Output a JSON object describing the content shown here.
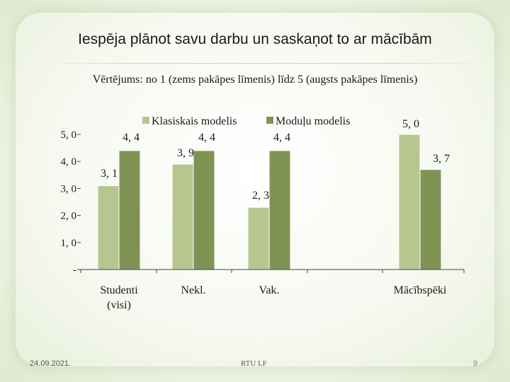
{
  "slide": {
    "title": "Iespēja plānot savu darbu un saskaņot to ar mācībām",
    "footer_date": "24.09.2021.",
    "footer_center": "RTU LF",
    "page_number": "9"
  },
  "colors": {
    "series_1": "#b7c68f",
    "series_2": "#7f9454",
    "axis": "#444444"
  },
  "chart_data": {
    "type": "bar",
    "title": "Vērtējums: no 1 (zems pakāpes līmenis) līdz 5 (augsts pakāpes līmenis)",
    "categories": [
      [
        "Studenti",
        "(visi)"
      ],
      [
        "Nekl."
      ],
      [
        "Vak."
      ],
      [
        "Mācībspēki"
      ]
    ],
    "series": [
      {
        "name": "Klasiskais modelis",
        "values": [
          3.1,
          3.9,
          2.3,
          5.0
        ]
      },
      {
        "name": "Moduļu modelis",
        "values": [
          4.4,
          4.4,
          4.4,
          3.7
        ]
      }
    ],
    "value_labels": [
      [
        "3, 1",
        "3, 9",
        "2, 3",
        "5, 0"
      ],
      [
        "4, 4",
        "4, 4",
        "4, 4",
        "3, 7"
      ]
    ],
    "ytick_values": [
      0,
      1,
      2,
      3,
      4,
      5
    ],
    "ytick_labels": [
      "-",
      "1, 0",
      "2, 0",
      "3, 0",
      "4, 0",
      "5, 0"
    ],
    "ylim": [
      0,
      5
    ],
    "grid": false,
    "legend_position": "top"
  }
}
